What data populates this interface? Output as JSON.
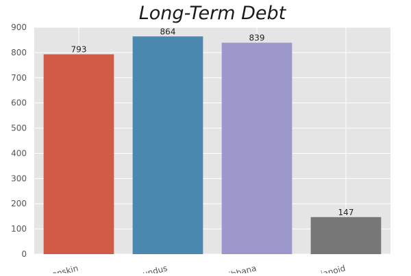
{
  "chart_data": {
    "type": "bar",
    "title": "Long-Term Debt",
    "categories": [
      "onskin",
      "undus",
      "ibbana",
      "ianoid"
    ],
    "values": [
      793,
      864,
      839,
      147
    ],
    "colors": [
      "#d05c47",
      "#4a88b0",
      "#9d98cb",
      "#777777"
    ],
    "xlabel": "",
    "ylabel": "",
    "ylim": [
      0,
      900
    ],
    "yticks": [
      0,
      100,
      200,
      300,
      400,
      500,
      600,
      700,
      800,
      900
    ],
    "grid": true,
    "background": "#e5e5e5"
  }
}
